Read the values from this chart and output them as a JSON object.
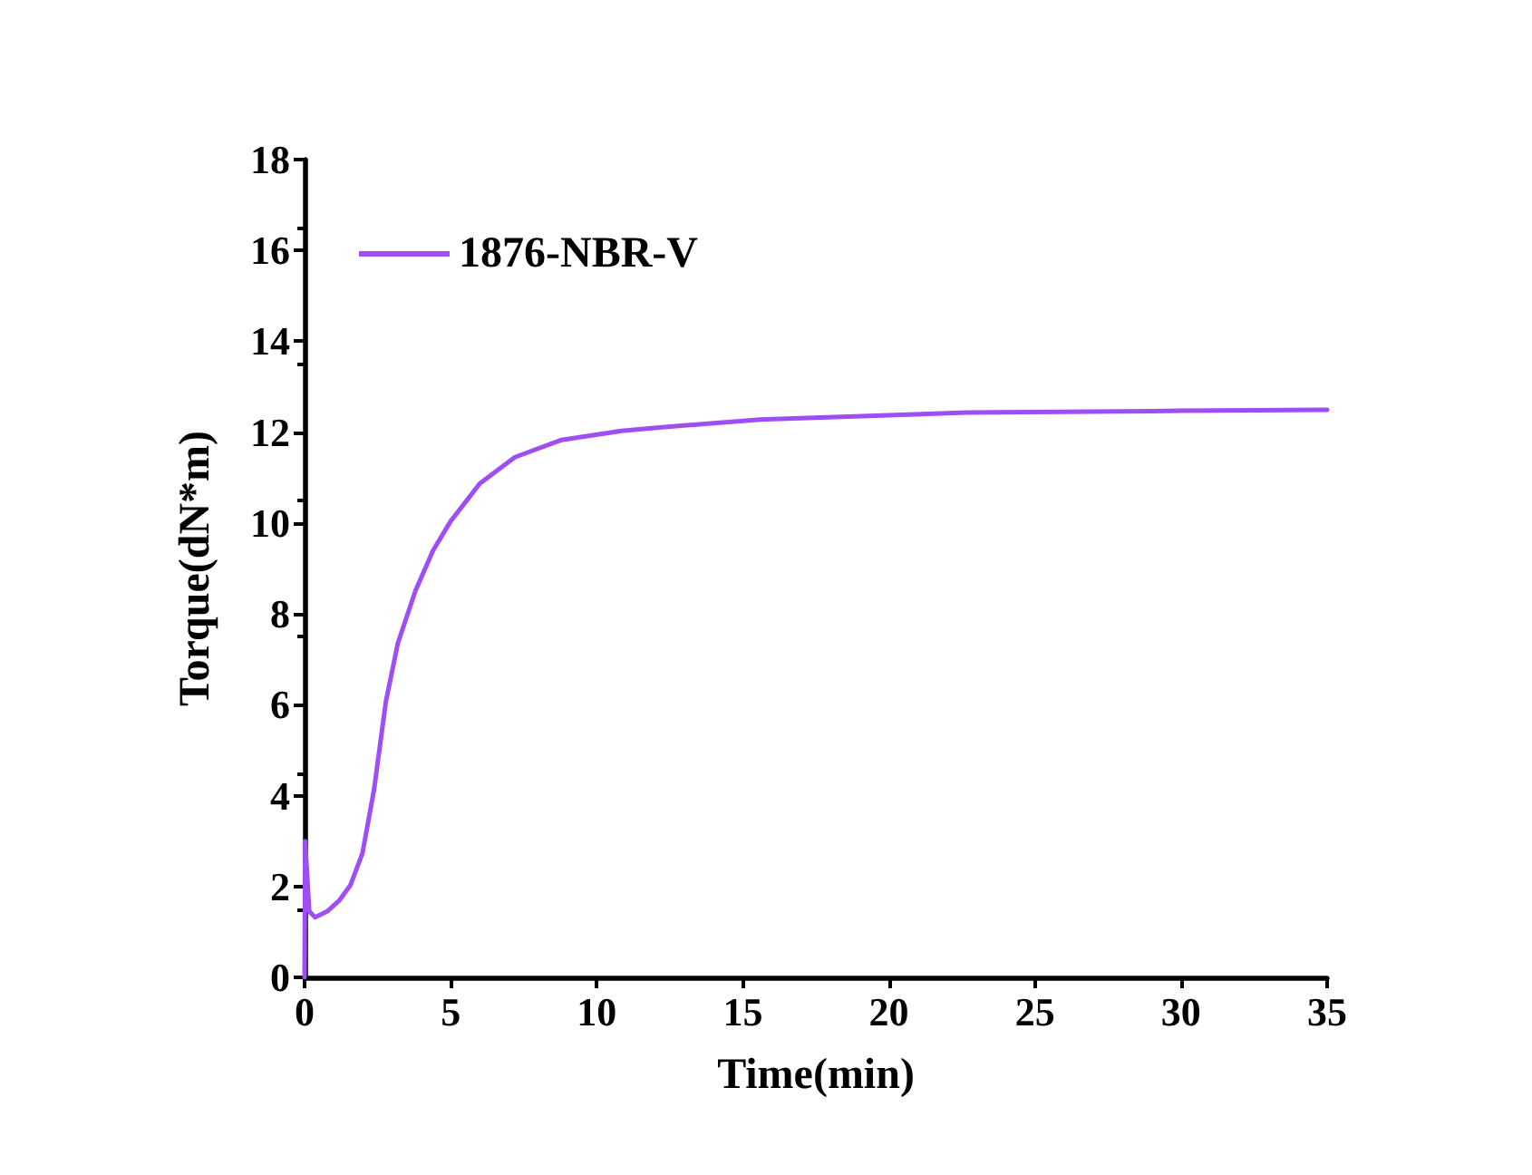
{
  "chart_data": {
    "type": "line",
    "xlabel": "Time(min)",
    "ylabel": "Torque(dN*m)",
    "x": [
      0,
      0.02,
      0.16,
      0.36,
      0.77,
      1.2,
      1.57,
      1.98,
      2.38,
      2.78,
      3.19,
      3.79,
      4.4,
      5,
      6,
      7.2,
      8.8,
      10.85,
      12.06,
      15.6,
      22.7,
      30,
      35
    ],
    "series": [
      {
        "name": "1876-NBR-V",
        "color": "#9d4ef5",
        "values": [
          0,
          3,
          1.45,
          1.32,
          1.45,
          1.7,
          2.03,
          2.73,
          4.14,
          6.06,
          7.35,
          8.5,
          9.4,
          10.04,
          10.87,
          11.45,
          11.83,
          12.03,
          12.1,
          12.28,
          12.43,
          12.47,
          12.49
        ]
      }
    ],
    "xlim": [
      0,
      35
    ],
    "xticks": [
      0,
      5,
      10,
      15,
      20,
      25,
      30,
      35
    ],
    "ylim": [
      0,
      18
    ],
    "yticks": [
      0,
      2,
      4,
      6,
      8,
      10,
      12,
      14,
      16,
      18
    ],
    "grid": false,
    "legend": "top left",
    "marker": "none",
    "line_style": "solid"
  }
}
